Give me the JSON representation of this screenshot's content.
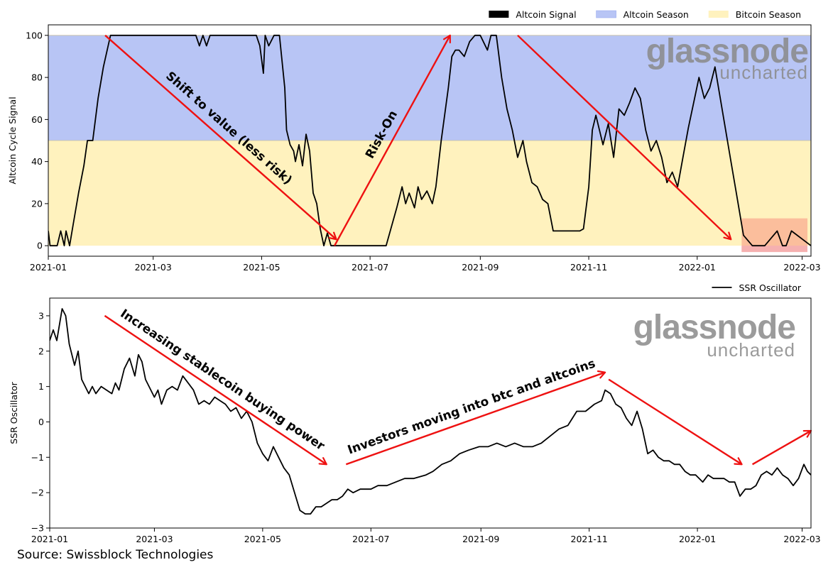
{
  "source_text": "Source: Swissblock Technologies",
  "colors": {
    "altcoin_season": "#b8c5f5",
    "bitcoin_season": "#fff2be",
    "highlight": "#fbb898",
    "highlight_edge": "#f5b0b0",
    "arrow": "#ee1111",
    "line": "#000000",
    "watermark": "#8a8a8a"
  },
  "watermark": {
    "brand": "glassnode",
    "sub": "uncharted"
  },
  "x_ticks": [
    "2021-01",
    "2021-03",
    "2021-05",
    "2021-07",
    "2021-09",
    "2021-11",
    "2022-01",
    "2022-03"
  ],
  "chart_data": [
    {
      "type": "line",
      "ylabel": "Altcoin Cycle Signal",
      "ylim": [
        -5,
        105
      ],
      "xlim": [
        "2021-01-01",
        "2022-03-06"
      ],
      "yticks": [
        0,
        20,
        40,
        60,
        80,
        100
      ],
      "legend": {
        "placement": "top-right",
        "entries": [
          "Altcoin Signal",
          "Altcoin Season",
          "Bitcoin Season"
        ]
      },
      "bands": [
        {
          "name": "Altcoin Season",
          "from": 50,
          "to": 100
        },
        {
          "name": "Bitcoin Season",
          "from": 0,
          "to": 50
        }
      ],
      "highlight_region": {
        "x_from": "2022-01-26",
        "x_to": "2022-03-04",
        "y_from": -3,
        "y_to": 13
      },
      "series": [
        {
          "name": "Altcoin Signal",
          "x": [
            "2021-01-01",
            "2021-01-02",
            "2021-01-06",
            "2021-01-08",
            "2021-01-10",
            "2021-01-11",
            "2021-01-13",
            "2021-01-15",
            "2021-01-18",
            "2021-01-21",
            "2021-01-23",
            "2021-01-26",
            "2021-01-29",
            "2021-02-01",
            "2021-02-05",
            "2021-02-08",
            "2021-02-12",
            "2021-02-18",
            "2021-02-25",
            "2021-03-04",
            "2021-03-10",
            "2021-03-18",
            "2021-03-25",
            "2021-03-27",
            "2021-03-29",
            "2021-03-31",
            "2021-04-02",
            "2021-04-05",
            "2021-04-10",
            "2021-04-20",
            "2021-04-28",
            "2021-04-30",
            "2021-05-02",
            "2021-05-03",
            "2021-05-05",
            "2021-05-08",
            "2021-05-11",
            "2021-05-14",
            "2021-05-15",
            "2021-05-17",
            "2021-05-19",
            "2021-05-20",
            "2021-05-22",
            "2021-05-24",
            "2021-05-26",
            "2021-05-28",
            "2021-05-30",
            "2021-06-01",
            "2021-06-03",
            "2021-06-05",
            "2021-06-07",
            "2021-06-09",
            "2021-06-11",
            "2021-06-14",
            "2021-06-16",
            "2021-06-19",
            "2021-06-22",
            "2021-06-26",
            "2021-07-03",
            "2021-07-10",
            "2021-07-16",
            "2021-07-19",
            "2021-07-21",
            "2021-07-23",
            "2021-07-26",
            "2021-07-28",
            "2021-07-30",
            "2021-08-02",
            "2021-08-05",
            "2021-08-07",
            "2021-08-10",
            "2021-08-14",
            "2021-08-16",
            "2021-08-18",
            "2021-08-20",
            "2021-08-23",
            "2021-08-26",
            "2021-08-29",
            "2021-09-01",
            "2021-09-05",
            "2021-09-07",
            "2021-09-10",
            "2021-09-13",
            "2021-09-16",
            "2021-09-19",
            "2021-09-22",
            "2021-09-25",
            "2021-09-27",
            "2021-09-30",
            "2021-10-03",
            "2021-10-06",
            "2021-10-09",
            "2021-10-12",
            "2021-10-15",
            "2021-10-18",
            "2021-10-21",
            "2021-10-24",
            "2021-10-27",
            "2021-10-29",
            "2021-11-01",
            "2021-11-03",
            "2021-11-05",
            "2021-11-07",
            "2021-11-09",
            "2021-11-12",
            "2021-11-15",
            "2021-11-18",
            "2021-11-21",
            "2021-11-24",
            "2021-11-27",
            "2021-11-30",
            "2021-12-03",
            "2021-12-06",
            "2021-12-09",
            "2021-12-12",
            "2021-12-15",
            "2021-12-18",
            "2021-12-21",
            "2021-12-24",
            "2021-12-27",
            "2021-12-30",
            "2022-01-02",
            "2022-01-05",
            "2022-01-08",
            "2022-01-11",
            "2022-01-14",
            "2022-01-17",
            "2022-01-20",
            "2022-01-23",
            "2022-01-25",
            "2022-01-27",
            "2022-02-01",
            "2022-02-03",
            "2022-02-05",
            "2022-02-08",
            "2022-02-15",
            "2022-02-18",
            "2022-02-20",
            "2022-02-23",
            "2022-03-06"
          ],
          "values": [
            7,
            0,
            0,
            7,
            0,
            7,
            0,
            10,
            25,
            38,
            50,
            50,
            70,
            85,
            100,
            100,
            100,
            100,
            100,
            100,
            100,
            100,
            100,
            95,
            100,
            95,
            100,
            100,
            100,
            100,
            100,
            95,
            82,
            100,
            95,
            100,
            100,
            75,
            55,
            48,
            45,
            40,
            48,
            38,
            53,
            45,
            25,
            20,
            8,
            0,
            6,
            0,
            0,
            0,
            0,
            0,
            0,
            0,
            0,
            0,
            18,
            28,
            20,
            25,
            18,
            28,
            22,
            26,
            20,
            28,
            50,
            75,
            90,
            93,
            93,
            90,
            97,
            100,
            100,
            93,
            100,
            100,
            80,
            65,
            55,
            42,
            50,
            40,
            30,
            28,
            22,
            20,
            7,
            7,
            7,
            7,
            7,
            7,
            8,
            28,
            55,
            62,
            55,
            48,
            58,
            42,
            65,
            62,
            68,
            75,
            70,
            55,
            45,
            50,
            42,
            30,
            35,
            28,
            42,
            56,
            68,
            80,
            70,
            75,
            85,
            70,
            55,
            40,
            25,
            15,
            5,
            0,
            0,
            0,
            0,
            7,
            0,
            0,
            7,
            0
          ]
        }
      ],
      "annotations": [
        {
          "text": "Shift to value (less risk)",
          "from": [
            "2021-02-02",
            100
          ],
          "to": [
            "2021-06-12",
            3
          ]
        },
        {
          "text": "Risk-On",
          "from": [
            "2021-06-11",
            0
          ],
          "to": [
            "2021-08-15",
            100
          ]
        },
        {
          "text": "",
          "from": [
            "2021-09-22",
            100
          ],
          "to": [
            "2022-01-20",
            3
          ]
        }
      ]
    },
    {
      "type": "line",
      "ylabel": "SSR Oscillator",
      "ylim": [
        -3,
        3.5
      ],
      "xlim": [
        "2021-01-01",
        "2022-03-06"
      ],
      "yticks": [
        -3,
        -2,
        -1,
        0,
        1,
        2,
        3
      ],
      "legend": {
        "placement": "top-right",
        "entries": [
          "SSR Oscillator"
        ]
      },
      "series": [
        {
          "name": "SSR Oscillator",
          "x": [
            "2021-01-01",
            "2021-01-03",
            "2021-01-05",
            "2021-01-08",
            "2021-01-10",
            "2021-01-12",
            "2021-01-15",
            "2021-01-17",
            "2021-01-19",
            "2021-01-21",
            "2021-01-23",
            "2021-01-25",
            "2021-01-27",
            "2021-01-30",
            "2021-02-02",
            "2021-02-05",
            "2021-02-07",
            "2021-02-09",
            "2021-02-12",
            "2021-02-15",
            "2021-02-18",
            "2021-02-20",
            "2021-02-22",
            "2021-02-24",
            "2021-02-27",
            "2021-03-01",
            "2021-03-03",
            "2021-03-05",
            "2021-03-08",
            "2021-03-11",
            "2021-03-14",
            "2021-03-17",
            "2021-03-20",
            "2021-03-23",
            "2021-03-26",
            "2021-03-29",
            "2021-04-01",
            "2021-04-04",
            "2021-04-07",
            "2021-04-10",
            "2021-04-13",
            "2021-04-16",
            "2021-04-19",
            "2021-04-22",
            "2021-04-25",
            "2021-04-28",
            "2021-05-01",
            "2021-05-04",
            "2021-05-07",
            "2021-05-10",
            "2021-05-13",
            "2021-05-16",
            "2021-05-19",
            "2021-05-22",
            "2021-05-25",
            "2021-05-28",
            "2021-05-31",
            "2021-06-03",
            "2021-06-06",
            "2021-06-09",
            "2021-06-12",
            "2021-06-15",
            "2021-06-18",
            "2021-06-21",
            "2021-06-25",
            "2021-07-01",
            "2021-07-05",
            "2021-07-10",
            "2021-07-15",
            "2021-07-20",
            "2021-07-25",
            "2021-08-01",
            "2021-08-05",
            "2021-08-10",
            "2021-08-15",
            "2021-08-20",
            "2021-08-25",
            "2021-08-31",
            "2021-09-05",
            "2021-09-10",
            "2021-09-15",
            "2021-09-20",
            "2021-09-25",
            "2021-09-30",
            "2021-10-05",
            "2021-10-10",
            "2021-10-15",
            "2021-10-20",
            "2021-10-25",
            "2021-10-30",
            "2021-11-04",
            "2021-11-08",
            "2021-11-10",
            "2021-11-13",
            "2021-11-16",
            "2021-11-19",
            "2021-11-22",
            "2021-11-25",
            "2021-11-28",
            "2021-12-01",
            "2021-12-04",
            "2021-12-07",
            "2021-12-10",
            "2021-12-13",
            "2021-12-16",
            "2021-12-19",
            "2021-12-22",
            "2021-12-25",
            "2021-12-28",
            "2021-12-31",
            "2022-01-04",
            "2022-01-07",
            "2022-01-10",
            "2022-01-13",
            "2022-01-16",
            "2022-01-19",
            "2022-01-22",
            "2022-01-25",
            "2022-01-28",
            "2022-01-31",
            "2022-02-03",
            "2022-02-06",
            "2022-02-09",
            "2022-02-12",
            "2022-02-15",
            "2022-02-18",
            "2022-02-21",
            "2022-02-24",
            "2022-02-27",
            "2022-03-02",
            "2022-03-04",
            "2022-03-06"
          ],
          "values": [
            2.3,
            2.6,
            2.3,
            3.2,
            3.0,
            2.2,
            1.6,
            2.0,
            1.2,
            1.0,
            0.8,
            1.0,
            0.8,
            1.0,
            0.9,
            0.8,
            1.1,
            0.9,
            1.5,
            1.8,
            1.3,
            1.9,
            1.7,
            1.2,
            0.9,
            0.7,
            0.9,
            0.5,
            0.9,
            1.0,
            0.9,
            1.3,
            1.1,
            0.9,
            0.5,
            0.6,
            0.5,
            0.7,
            0.6,
            0.5,
            0.3,
            0.4,
            0.1,
            0.3,
            0.0,
            -0.6,
            -0.9,
            -1.1,
            -0.7,
            -1.0,
            -1.3,
            -1.5,
            -2.0,
            -2.5,
            -2.6,
            -2.6,
            -2.4,
            -2.4,
            -2.3,
            -2.2,
            -2.2,
            -2.1,
            -1.9,
            -2.0,
            -1.9,
            -1.9,
            -1.8,
            -1.8,
            -1.7,
            -1.6,
            -1.6,
            -1.5,
            -1.4,
            -1.2,
            -1.1,
            -0.9,
            -0.8,
            -0.7,
            -0.7,
            -0.6,
            -0.7,
            -0.6,
            -0.7,
            -0.7,
            -0.6,
            -0.4,
            -0.2,
            -0.1,
            0.3,
            0.3,
            0.5,
            0.6,
            0.9,
            0.8,
            0.5,
            0.4,
            0.1,
            -0.1,
            0.3,
            -0.2,
            -0.9,
            -0.8,
            -1.0,
            -1.1,
            -1.1,
            -1.2,
            -1.2,
            -1.4,
            -1.5,
            -1.5,
            -1.7,
            -1.5,
            -1.6,
            -1.6,
            -1.6,
            -1.7,
            -1.7,
            -2.1,
            -1.9,
            -1.9,
            -1.8,
            -1.5,
            -1.4,
            -1.5,
            -1.3,
            -1.5,
            -1.6,
            -1.8,
            -1.6,
            -1.2,
            -1.4,
            -1.5
          ],
          "color": "#000000"
        }
      ],
      "annotations": [
        {
          "text": "Increasing stablecoin buying power",
          "from": [
            "2021-02-01",
            3.0
          ],
          "to": [
            "2021-06-06",
            -1.2
          ]
        },
        {
          "text": "Investors moving into btc and altcoins",
          "from": [
            "2021-06-17",
            -1.2
          ],
          "to": [
            "2021-11-10",
            1.4
          ]
        },
        {
          "text": "",
          "from": [
            "2021-11-12",
            1.2
          ],
          "to": [
            "2022-01-26",
            -1.2
          ]
        },
        {
          "text": "",
          "from": [
            "2022-02-01",
            -1.2
          ],
          "to": [
            "2022-03-06",
            -0.25
          ]
        }
      ]
    }
  ]
}
